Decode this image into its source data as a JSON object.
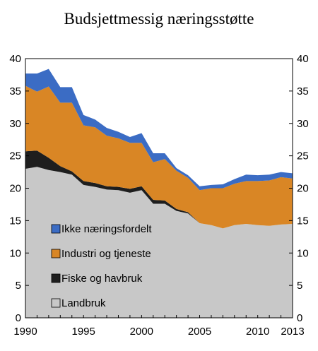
{
  "chart_data": {
    "type": "area",
    "stacked": true,
    "title": "Budsjettmessig næringsstøtte",
    "xlabel": "",
    "ylabel": "",
    "xlim": [
      1990,
      2013
    ],
    "ylim": [
      0,
      40
    ],
    "y_ticks": [
      0,
      5,
      10,
      15,
      20,
      25,
      30,
      35,
      40
    ],
    "x_ticks": [
      1990,
      1995,
      2000,
      2005,
      2010,
      2013
    ],
    "axis_mirrored_right": true,
    "grid": false,
    "legend_position": "lower-left",
    "x": [
      1990,
      1991,
      1992,
      1993,
      1994,
      1995,
      1996,
      1997,
      1998,
      1999,
      2000,
      2001,
      2002,
      2003,
      2004,
      2005,
      2006,
      2007,
      2008,
      2009,
      2010,
      2011,
      2012,
      2013
    ],
    "series": [
      {
        "name": "Landbruk",
        "color": "#c8c8c8",
        "values": [
          23.0,
          23.3,
          22.8,
          22.5,
          22.1,
          20.5,
          20.2,
          19.8,
          19.7,
          19.3,
          19.7,
          17.6,
          17.6,
          16.5,
          16.1,
          14.6,
          14.3,
          13.8,
          14.3,
          14.5,
          14.3,
          14.2,
          14.4,
          14.5
        ]
      },
      {
        "name": "Fiske og havbruk",
        "color": "#1e1e1e",
        "values": [
          2.7,
          2.5,
          1.9,
          0.9,
          0.5,
          0.6,
          0.6,
          0.5,
          0.5,
          0.6,
          0.6,
          0.6,
          0.5,
          0.3,
          0.2,
          0.0,
          0.0,
          0.0,
          0.0,
          0.0,
          0.0,
          0.0,
          0.0,
          0.0
        ]
      },
      {
        "name": "Industri og tjeneste",
        "color": "#d98625",
        "values": [
          10.1,
          9.1,
          11.0,
          9.8,
          10.6,
          8.6,
          8.6,
          7.8,
          7.5,
          7.1,
          6.7,
          5.8,
          6.4,
          5.9,
          5.3,
          5.1,
          5.7,
          6.2,
          6.4,
          6.6,
          6.8,
          7.0,
          7.3,
          7.0
        ]
      },
      {
        "name": "Ikke næringsfordelt",
        "color": "#3b6cc4",
        "values": [
          1.9,
          2.8,
          2.7,
          2.4,
          2.4,
          1.6,
          1.2,
          1.2,
          1.0,
          0.9,
          1.5,
          1.4,
          0.9,
          0.4,
          0.4,
          0.6,
          0.5,
          0.6,
          0.7,
          1.0,
          0.9,
          0.9,
          0.8,
          0.8
        ]
      }
    ]
  }
}
